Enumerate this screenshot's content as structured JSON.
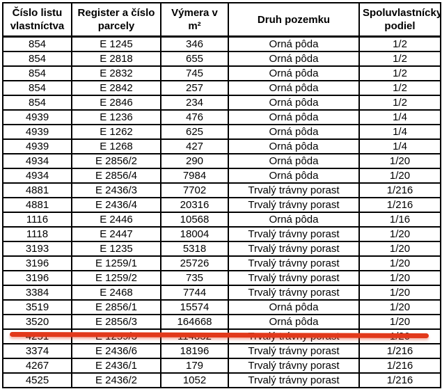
{
  "table": {
    "columns": [
      {
        "key": "cislo_listu_vlastnictva",
        "label": "Číslo listu vlastníctva"
      },
      {
        "key": "register_a_cislo_parcely",
        "label": "Register a číslo parcely"
      },
      {
        "key": "vymera_v_m2",
        "label": "Výmera v m²"
      },
      {
        "key": "druh_pozemku",
        "label": "Druh pozemku"
      },
      {
        "key": "spoluvlastnicky_podiel",
        "label": "Spoluvlastnícky podiel"
      }
    ],
    "rows": [
      {
        "cells": [
          "854",
          "E 1245",
          "346",
          "Orná pôda",
          "1/2"
        ],
        "struck": false
      },
      {
        "cells": [
          "854",
          "E 2818",
          "655",
          "Orná pôda",
          "1/2"
        ],
        "struck": false
      },
      {
        "cells": [
          "854",
          "E 2832",
          "745",
          "Orná pôda",
          "1/2"
        ],
        "struck": false
      },
      {
        "cells": [
          "854",
          "E 2842",
          "257",
          "Orná pôda",
          "1/2"
        ],
        "struck": false
      },
      {
        "cells": [
          "854",
          "E 2846",
          "234",
          "Orná pôda",
          "1/2"
        ],
        "struck": false
      },
      {
        "cells": [
          "4939",
          "E 1236",
          "476",
          "Orná pôda",
          "1/4"
        ],
        "struck": false
      },
      {
        "cells": [
          "4939",
          "E 1262",
          "625",
          "Orná pôda",
          "1/4"
        ],
        "struck": false
      },
      {
        "cells": [
          "4939",
          "E 1268",
          "427",
          "Orná pôda",
          "1/4"
        ],
        "struck": false
      },
      {
        "cells": [
          "4934",
          "E 2856/2",
          "290",
          "Orná pôda",
          "1/20"
        ],
        "struck": false
      },
      {
        "cells": [
          "4934",
          "E 2856/4",
          "7984",
          "Orná pôda",
          "1/20"
        ],
        "struck": false
      },
      {
        "cells": [
          "4881",
          "E 2436/3",
          "7702",
          "Trvalý trávny porast",
          "1/216"
        ],
        "struck": false
      },
      {
        "cells": [
          "4881",
          "E 2436/4",
          "20316",
          "Trvalý trávny porast",
          "1/216"
        ],
        "struck": false
      },
      {
        "cells": [
          "1116",
          "E 2446",
          "10568",
          "Orná pôda",
          "1/16"
        ],
        "struck": false
      },
      {
        "cells": [
          "1118",
          "E 2447",
          "18004",
          "Trvalý trávny porast",
          "1/20"
        ],
        "struck": false
      },
      {
        "cells": [
          "3193",
          "E 1235",
          "5318",
          "Trvalý trávny porast",
          "1/20"
        ],
        "struck": false
      },
      {
        "cells": [
          "3196",
          "E 1259/1",
          "25726",
          "Trvalý trávny porast",
          "1/20"
        ],
        "struck": false
      },
      {
        "cells": [
          "3196",
          "E 1259/2",
          "735",
          "Trvalý trávny porast",
          "1/20"
        ],
        "struck": false
      },
      {
        "cells": [
          "3384",
          "E 2468",
          "7744",
          "Trvalý trávny porast",
          "1/20"
        ],
        "struck": false
      },
      {
        "cells": [
          "3519",
          "E 2856/1",
          "15574",
          "Orná pôda",
          "1/20"
        ],
        "struck": false
      },
      {
        "cells": [
          "3520",
          "E 2856/3",
          "164668",
          "Orná pôda",
          "1/20"
        ],
        "struck": false
      },
      {
        "cells": [
          "4251",
          "E 1259/3",
          "114832",
          "Trvalý trávny porast",
          "1/20"
        ],
        "struck": true
      },
      {
        "cells": [
          "3374",
          "E 2436/6",
          "18196",
          "Trvalý trávny porast",
          "1/216"
        ],
        "struck": false
      },
      {
        "cells": [
          "4267",
          "E 2436/1",
          "179",
          "Trvalý trávny porast",
          "1/216"
        ],
        "struck": false
      },
      {
        "cells": [
          "4525",
          "E 2436/2",
          "1052",
          "Trvalý trávny porast",
          "1/216"
        ],
        "struck": false
      }
    ]
  },
  "annotation": {
    "type": "strikethrough",
    "color": "#e2391b"
  },
  "colors": {
    "border": "#000000",
    "text": "#000000",
    "background": "#ffffff",
    "strikethrough": "#e2391b"
  }
}
